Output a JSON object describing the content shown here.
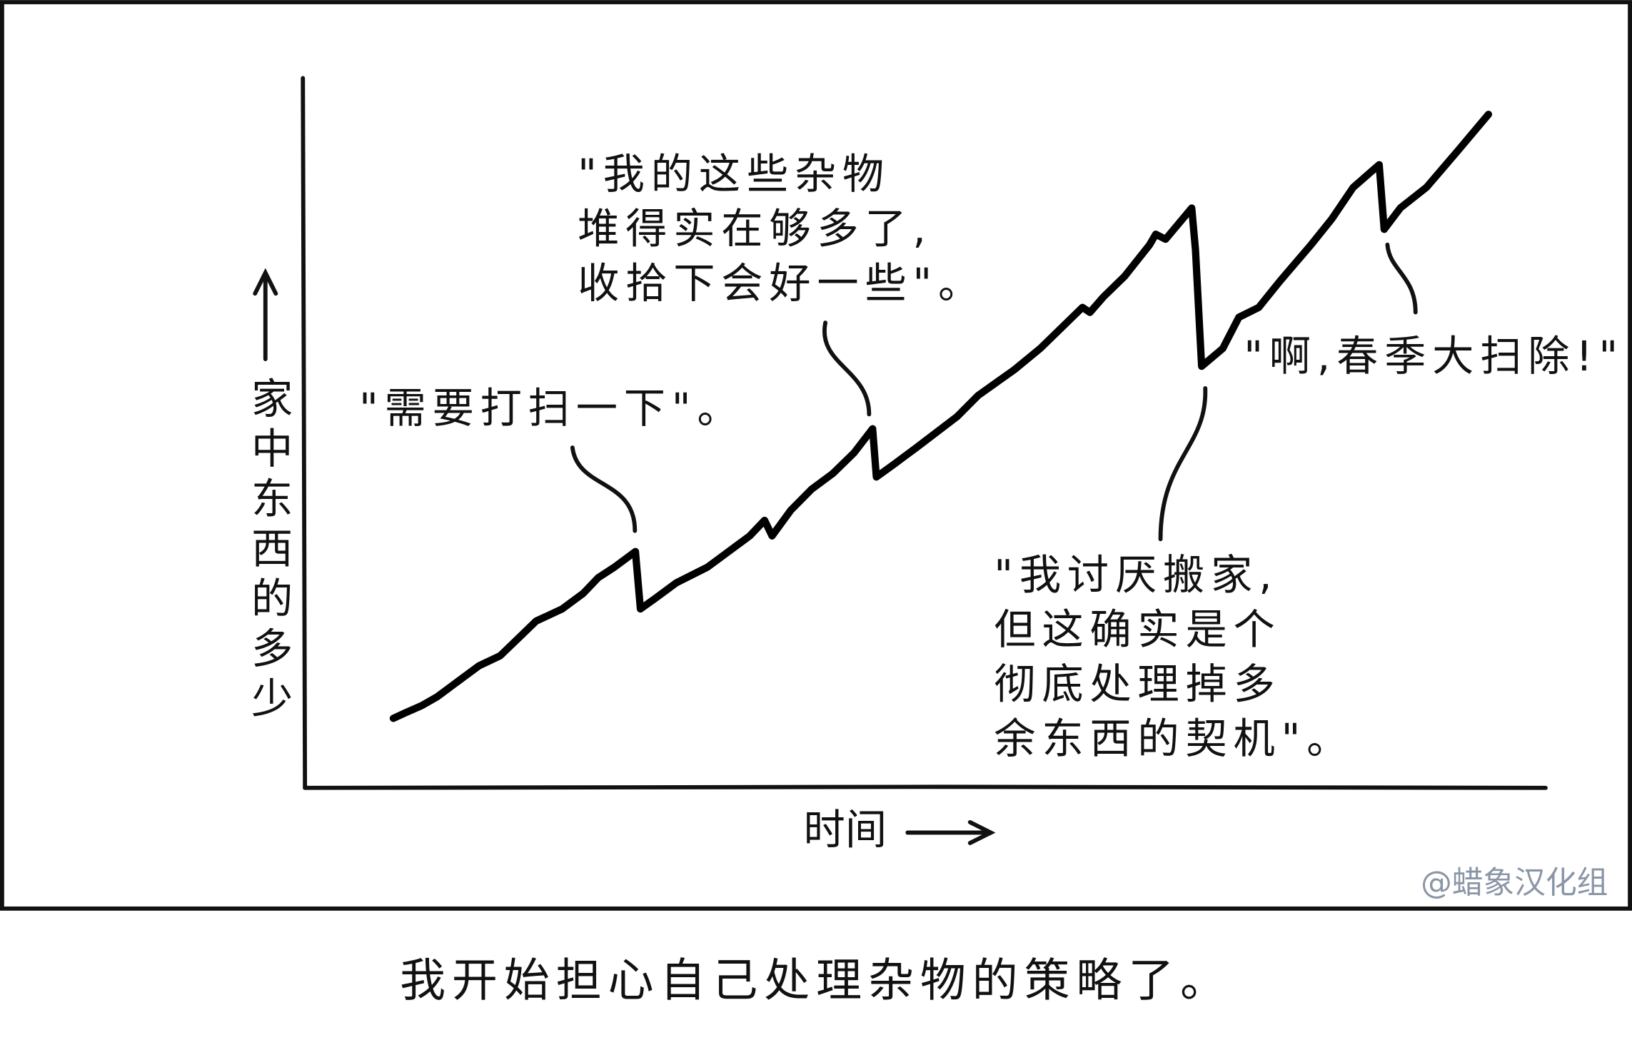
{
  "chart_data": {
    "type": "line",
    "xlabel": "时间",
    "ylabel": "家中东西的多少",
    "xlim": [
      0,
      100
    ],
    "ylim": [
      0,
      100
    ],
    "color": "#000000",
    "x": [
      7.2,
      8.2,
      9.5,
      10.7,
      12.4,
      14.1,
      15.8,
      17.4,
      18.7,
      20.8,
      22.5,
      23.7,
      25.0,
      26.7,
      27.1,
      28.3,
      30.0,
      32.5,
      34.2,
      35.9,
      37.1,
      37.7,
      39.2,
      40.9,
      42.6,
      44.3,
      45.8,
      46.1,
      47.6,
      49.3,
      52.6,
      54.3,
      57.2,
      59.3,
      62.7,
      63.3,
      64.4,
      66.1,
      68.1,
      68.6,
      69.4,
      71.5,
      71.8,
      72.3,
      74.0,
      75.3,
      76.9,
      78.6,
      81.1,
      82.8,
      84.5,
      86.6,
      87.0,
      88.3,
      90.4,
      92.9,
      95.4
    ],
    "values": [
      9.8,
      10.6,
      11.6,
      12.8,
      15.0,
      17.2,
      18.6,
      21.3,
      23.5,
      25.2,
      27.4,
      29.6,
      31.1,
      33.3,
      25.2,
      26.7,
      28.9,
      31.1,
      33.3,
      35.5,
      37.7,
      35.5,
      39.1,
      42.1,
      44.3,
      47.2,
      50.6,
      43.8,
      45.7,
      47.9,
      52.3,
      55.3,
      58.9,
      61.9,
      67.7,
      67.0,
      69.2,
      72.1,
      76.5,
      78.0,
      77.3,
      81.7,
      75.8,
      59.4,
      61.9,
      66.3,
      67.7,
      71.4,
      76.5,
      80.2,
      84.6,
      87.8,
      78.7,
      81.7,
      84.6,
      89.7,
      94.9
    ],
    "annotations": [
      {
        "lines": [
          "\"需要打扫一下\"。"
        ]
      },
      {
        "lines": [
          "\"我的这些杂物",
          "堆得实在够多了,",
          "收拾下会好一些\"。"
        ]
      },
      {
        "lines": [
          "\"啊,春季大扫除!\""
        ]
      },
      {
        "lines": [
          "\"我讨厌搬家,",
          "但这确实是个",
          "彻底处理掉多",
          "余东西的契机\"。"
        ]
      }
    ]
  },
  "caption": "我开始担心自己处理杂物的策略了。",
  "watermark": "@蜡象汉化组"
}
